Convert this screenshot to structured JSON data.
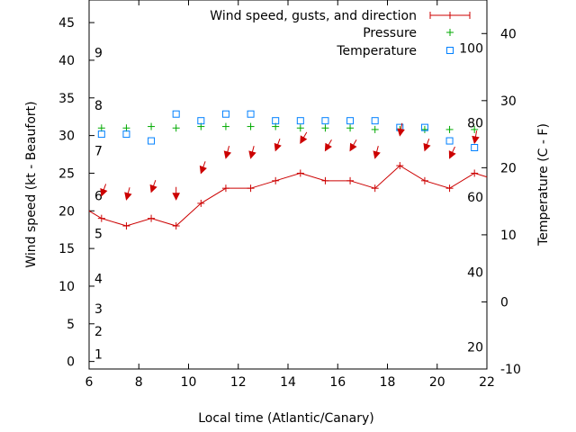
{
  "chart_data": {
    "type": "line",
    "xlabel": "Local time (Atlantic/Canary)",
    "ylabel_left": "Wind speed (kt - Beaufort)",
    "ylabel_right": "Temperature (C - F)",
    "xlim": [
      6,
      22
    ],
    "ylim_left": [
      -1,
      48
    ],
    "ylim_right": [
      -10,
      45
    ],
    "x_ticks": [
      6,
      8,
      10,
      12,
      14,
      16,
      18,
      20,
      22
    ],
    "x_tick_labels": [
      "6",
      "8",
      "10",
      "12",
      "14",
      "16",
      "18",
      "20",
      "22"
    ],
    "y_left_ticks": [
      0,
      5,
      10,
      15,
      20,
      25,
      30,
      35,
      40,
      45
    ],
    "y_left_tick_labels": [
      "0",
      "5",
      "10",
      "15",
      "20",
      "25",
      "30",
      "35",
      "40",
      "45"
    ],
    "y_right_ticks": [
      -10,
      0,
      10,
      20,
      30,
      40
    ],
    "y_right_tick_labels": [
      "-10",
      "0",
      "10",
      "20",
      "30",
      "40"
    ],
    "beaufort_labels": [
      {
        "label": "1",
        "wind": 1
      },
      {
        "label": "2",
        "wind": 4
      },
      {
        "label": "3",
        "wind": 7
      },
      {
        "label": "4",
        "wind": 11
      },
      {
        "label": "5",
        "wind": 17
      },
      {
        "label": "6",
        "wind": 22
      },
      {
        "label": "7",
        "wind": 28
      },
      {
        "label": "8",
        "wind": 34
      },
      {
        "label": "9",
        "wind": 41
      }
    ],
    "fahrenheit_labels": [
      {
        "label": "20",
        "temp_c": -6.7
      },
      {
        "label": "40",
        "temp_c": 4.4
      },
      {
        "label": "60",
        "temp_c": 15.6
      },
      {
        "label": "80",
        "temp_c": 26.7
      },
      {
        "label": "100",
        "temp_c": 37.8
      }
    ],
    "legend": [
      {
        "label": "Wind speed, gusts, and direction",
        "color": "#cc0000",
        "marker": "line-plus"
      },
      {
        "label": "Pressure",
        "color": "#00aa00",
        "marker": "plus"
      },
      {
        "label": "Temperature",
        "color": "#0080ff",
        "marker": "square"
      }
    ],
    "legend_position": "top-right",
    "grid": false,
    "series": [
      {
        "name": "Wind speed, gusts, and direction",
        "axis": "left",
        "color": "#cc0000",
        "x": [
          6,
          6.5,
          7.5,
          8.5,
          9.5,
          10.5,
          11.5,
          12.5,
          13.5,
          14.5,
          15.5,
          16.5,
          17.5,
          18.5,
          19.5,
          20.5,
          21.5,
          22
        ],
        "values": [
          20,
          19,
          18,
          19,
          18,
          21,
          23,
          23,
          24,
          25,
          24,
          24,
          23,
          26,
          24,
          23,
          25,
          24.5
        ]
      },
      {
        "name": "Pressure",
        "axis": "left",
        "color": "#00aa00",
        "x": [
          6.5,
          7.5,
          8.5,
          9.5,
          10.5,
          11.5,
          12.5,
          13.5,
          14.5,
          15.5,
          16.5,
          17.5,
          18.5,
          19.5,
          20.5,
          21.5
        ],
        "values": [
          31,
          31,
          31.2,
          31,
          31.2,
          31.2,
          31.2,
          31.2,
          31,
          31,
          31,
          30.8,
          30.8,
          30.8,
          30.8,
          30.8
        ]
      },
      {
        "name": "Temperature",
        "axis": "right",
        "color": "#0080ff",
        "x": [
          6.5,
          7.5,
          8.5,
          9.5,
          10.5,
          11.5,
          12.5,
          13.5,
          14.5,
          15.5,
          16.5,
          17.5,
          18.5,
          19.5,
          20.5,
          21.5
        ],
        "values": [
          25,
          25,
          24,
          28,
          27,
          28,
          28,
          27,
          27,
          27,
          27,
          27,
          26,
          26,
          24,
          23
        ]
      },
      {
        "name": "Wind direction",
        "axis": "left",
        "color": "#cc0000",
        "x": [
          6.5,
          7.5,
          8.5,
          9.5,
          10.5,
          11.5,
          12.5,
          13.5,
          14.5,
          15.5,
          16.5,
          17.5,
          18.5,
          19.5,
          20.5,
          21.5
        ],
        "values": [
          22,
          21.5,
          22.5,
          21.5,
          25,
          27,
          27,
          28,
          29,
          28,
          28,
          27,
          30,
          28,
          27,
          29
        ],
        "direction_deg": [
          20,
          15,
          20,
          0,
          20,
          15,
          15,
          20,
          30,
          30,
          30,
          15,
          10,
          20,
          25,
          10
        ]
      }
    ]
  }
}
